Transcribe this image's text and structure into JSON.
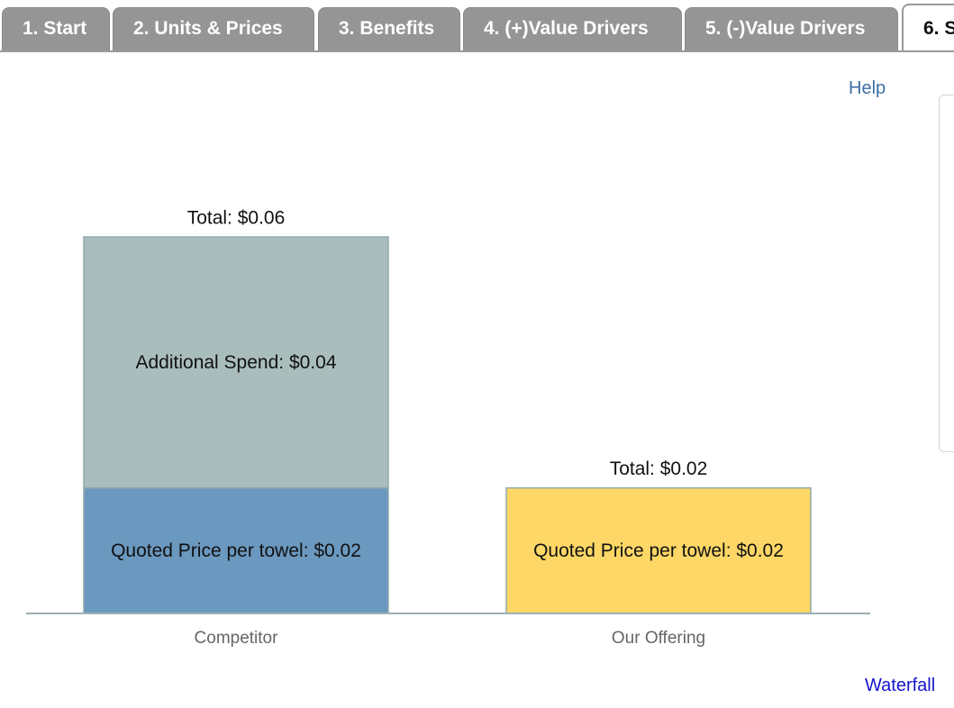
{
  "tabs": [
    {
      "label": "1. Start",
      "active": false
    },
    {
      "label": "2. Units & Prices",
      "active": false
    },
    {
      "label": "3. Benefits",
      "active": false
    },
    {
      "label": "4. (+)Value Drivers",
      "active": false
    },
    {
      "label": "5. (-)Value Drivers",
      "active": false
    },
    {
      "label": "6. S",
      "active": true
    }
  ],
  "help_label": "Help",
  "waterfall_label": "Waterfall",
  "chart_data": {
    "type": "bar",
    "stacked": true,
    "categories": [
      "Competitor",
      "Our Offering"
    ],
    "series": [
      {
        "segment": "Quoted Price per towel",
        "values": [
          0.02,
          0.02
        ],
        "labels": [
          "Quoted Price per towel: $0.02",
          "Quoted Price per towel: $0.02"
        ],
        "colors": [
          "#6b98bf",
          "#fed766"
        ]
      },
      {
        "segment": "Additional Spend",
        "values": [
          0.04,
          0
        ],
        "labels": [
          "Additional Spend: $0.04",
          ""
        ],
        "colors": [
          "#a9bdbd",
          "#a9bdbd"
        ]
      }
    ],
    "totals": [
      0.06,
      0.02
    ],
    "total_labels": [
      "Total: $0.06",
      "Total: $0.02"
    ],
    "ylim": [
      0,
      0.08
    ],
    "grid": false,
    "legend": "none"
  }
}
